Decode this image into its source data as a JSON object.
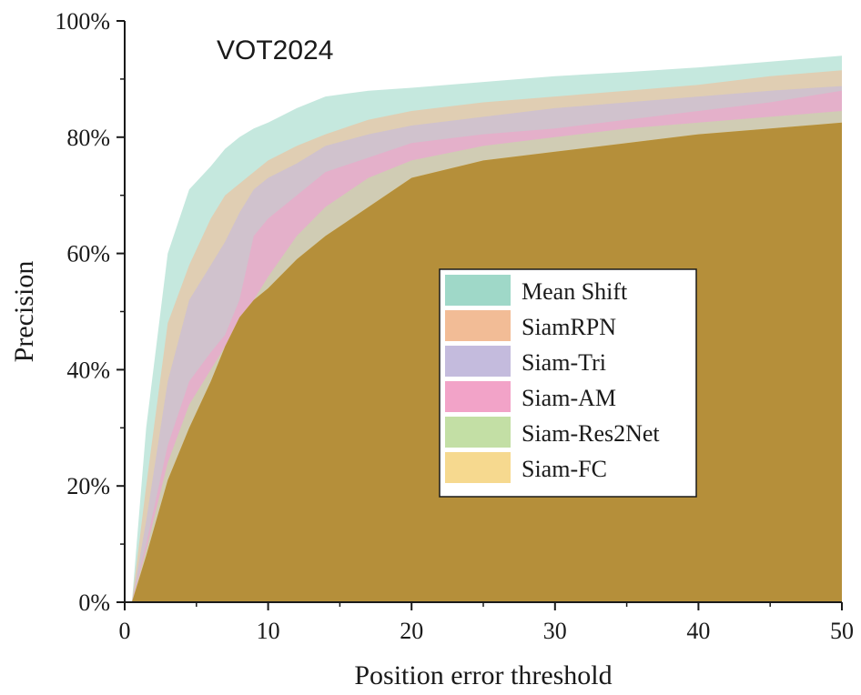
{
  "chart_data": {
    "type": "area",
    "title": "",
    "annotation": "VOT2024",
    "xlabel": "Position error threshold",
    "ylabel": "Precision",
    "xlim": [
      0,
      50
    ],
    "ylim": [
      0,
      100
    ],
    "x_ticks": [
      0,
      10,
      20,
      30,
      40,
      50
    ],
    "x_tick_labels": [
      "0",
      "10",
      "20",
      "30",
      "40",
      "50"
    ],
    "y_ticks": [
      0,
      20,
      40,
      60,
      80,
      100
    ],
    "y_tick_labels": [
      "0%",
      "20%",
      "40%",
      "60%",
      "80%",
      "100%"
    ],
    "legend_position": "center-right",
    "x": [
      0,
      0.5,
      1.5,
      3,
      4.5,
      6,
      7,
      8,
      9,
      10,
      12,
      14,
      17,
      20,
      25,
      30,
      35,
      40,
      45,
      50
    ],
    "series": [
      {
        "name": "Mean Shift",
        "color": "#9fd8c8",
        "values": [
          0,
          0,
          30,
          60,
          71,
          75,
          78,
          80,
          81.5,
          82.5,
          85,
          87,
          88,
          88.5,
          89.5,
          90.5,
          91.2,
          92,
          93,
          94
        ]
      },
      {
        "name": "SiamRPN",
        "color": "#f2bc96",
        "values": [
          0,
          0,
          20,
          48,
          58,
          66,
          70,
          72,
          74,
          76,
          78.5,
          80.5,
          83,
          84.5,
          86,
          87,
          88,
          89,
          90.5,
          91.5
        ]
      },
      {
        "name": "Siam-Tri",
        "color": "#c4bbdd",
        "values": [
          0,
          0,
          14,
          38,
          52,
          58,
          62,
          67,
          71,
          73,
          75.5,
          78.5,
          80.5,
          82,
          83.5,
          85,
          86,
          87,
          88,
          88.8
        ]
      },
      {
        "name": "Siam-AM",
        "color": "#f2a3c8",
        "values": [
          0,
          0,
          10,
          27,
          38,
          43,
          46,
          52,
          63,
          66,
          70,
          74,
          76.5,
          79,
          80.5,
          81.5,
          83,
          84.5,
          86,
          88
        ]
      },
      {
        "name": "Siam-Res2Net",
        "color": "#c3dfa5",
        "values": [
          0,
          0,
          9,
          24,
          34,
          40,
          44,
          48,
          52,
          56,
          63,
          68,
          73,
          76,
          78.5,
          80,
          81.5,
          82.5,
          83.5,
          84.5
        ]
      },
      {
        "name": "Siam-FC",
        "color": "#f6d98f",
        "values": [
          0,
          0,
          8,
          21,
          30,
          38,
          44,
          49,
          52,
          54,
          59,
          63,
          68,
          73,
          76,
          77.5,
          79,
          80.5,
          81.5,
          82.5
        ]
      }
    ]
  }
}
